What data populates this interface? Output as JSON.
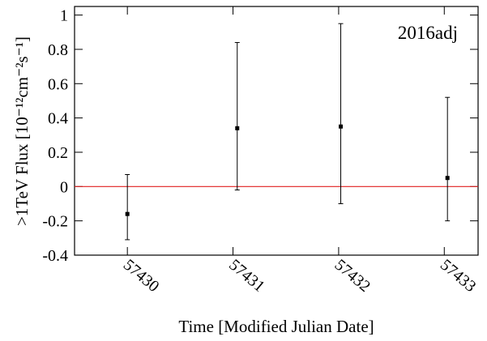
{
  "chart_data": {
    "type": "scatter",
    "annotation": "2016adj",
    "x_label": "Time [Modified Julian Date]",
    "y_label": ">1TeV Flux [10⁻¹²cm⁻²s⁻¹]",
    "series": [
      {
        "x": [
          57430.0,
          57431.04,
          57432.02,
          57433.03
        ],
        "values": [
          -0.16,
          0.34,
          0.35,
          0.05
        ],
        "error_minus": [
          0.15,
          0.36,
          0.45,
          0.25
        ],
        "error_plus": [
          0.23,
          0.5,
          0.6,
          0.47
        ],
        "color": "#000000"
      }
    ],
    "hline": 0,
    "hline_color": "#e02020",
    "xlim": [
      57429.5,
      57433.32
    ],
    "xticks": [
      57430,
      57431,
      57432,
      57433
    ],
    "ylim": [
      -0.4,
      1.05
    ],
    "yticks": [
      -0.4,
      -0.2,
      0,
      0.2,
      0.4,
      0.6,
      0.8,
      1
    ]
  }
}
